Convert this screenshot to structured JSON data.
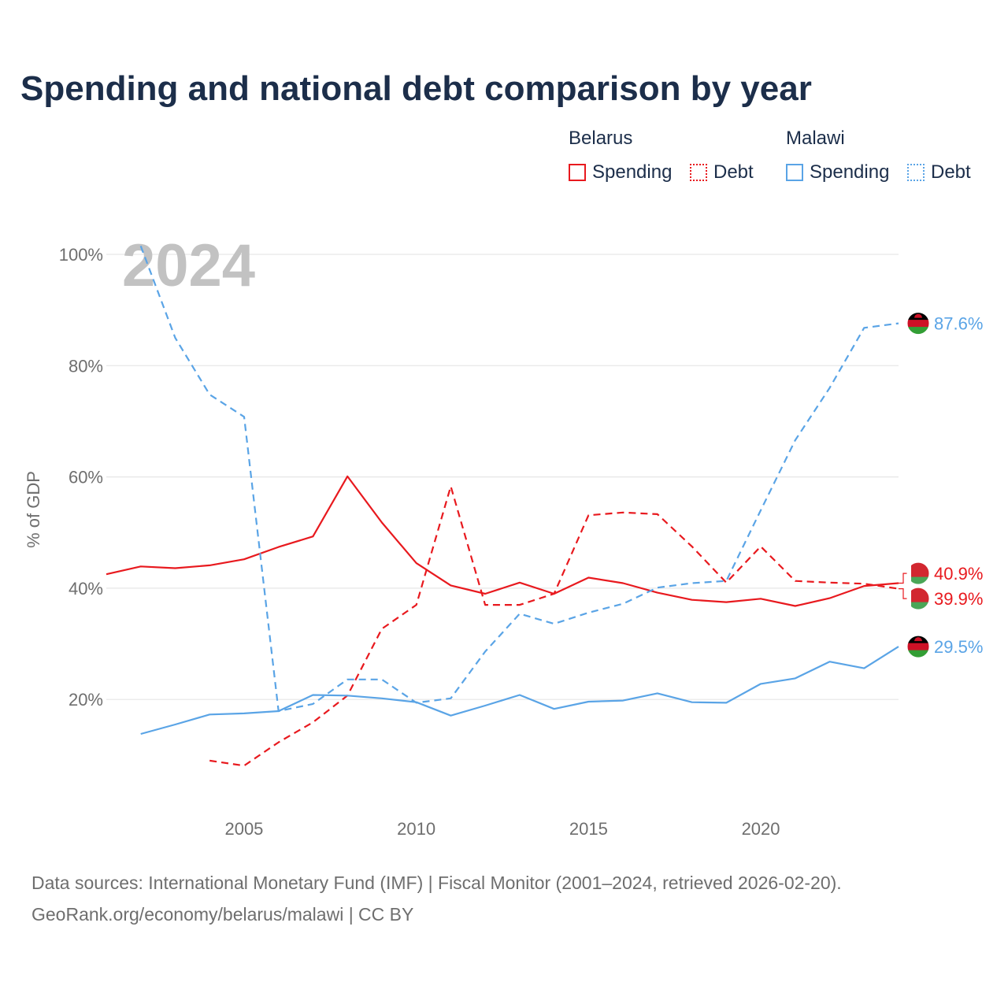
{
  "title": "Spending and national debt comparison by year",
  "legend": {
    "groups": [
      {
        "name": "Belarus",
        "color": "#e8191e",
        "items": [
          {
            "label": "Spending",
            "style": "solid"
          },
          {
            "label": "Debt",
            "style": "dotted"
          }
        ]
      },
      {
        "name": "Malawi",
        "color": "#5aa4e6",
        "items": [
          {
            "label": "Spending",
            "style": "solid"
          },
          {
            "label": "Debt",
            "style": "dotted"
          }
        ]
      }
    ]
  },
  "footer": {
    "line1": "Data sources: International Monetary Fund (IMF) | Fiscal Monitor (2001–2024, retrieved 2026-02-20).",
    "line2": "GeoRank.org/economy/belarus/malawi | CC BY"
  },
  "chart_data": {
    "type": "line",
    "title": "Spending and national debt comparison by year",
    "xlabel": "",
    "ylabel": "% of GDP",
    "year_watermark": "2024",
    "xlim": [
      2001,
      2024
    ],
    "ylim": [
      0,
      100
    ],
    "x_ticks": [
      "2005",
      "2010",
      "2015",
      "2020"
    ],
    "y_ticks": [
      "20%",
      "40%",
      "60%",
      "80%",
      "100%"
    ],
    "grid": true,
    "series": [
      {
        "name": "Belarus Spending",
        "country": "Belarus",
        "metric": "Spending",
        "color": "#e8191e",
        "dash": "solid",
        "end_label": "40.9%",
        "points": [
          [
            2001,
            42.5
          ],
          [
            2002,
            43.9
          ],
          [
            2003,
            43.6
          ],
          [
            2004,
            44.1
          ],
          [
            2005,
            45.2
          ],
          [
            2006,
            47.4
          ],
          [
            2007,
            49.3
          ],
          [
            2008,
            60.1
          ],
          [
            2009,
            51.8
          ],
          [
            2010,
            44.5
          ],
          [
            2011,
            40.5
          ],
          [
            2012,
            39.0
          ],
          [
            2013,
            41.0
          ],
          [
            2014,
            39.0
          ],
          [
            2015,
            41.9
          ],
          [
            2016,
            40.9
          ],
          [
            2017,
            39.2
          ],
          [
            2018,
            37.9
          ],
          [
            2019,
            37.5
          ],
          [
            2020,
            38.1
          ],
          [
            2021,
            36.8
          ],
          [
            2022,
            38.2
          ],
          [
            2023,
            40.4
          ],
          [
            2024,
            40.9
          ]
        ]
      },
      {
        "name": "Belarus Debt",
        "country": "Belarus",
        "metric": "Debt",
        "color": "#e8191e",
        "dash": "dashed",
        "end_label": "39.9%",
        "points": [
          [
            2004,
            9.0
          ],
          [
            2005,
            8.1
          ],
          [
            2006,
            12.3
          ],
          [
            2007,
            15.9
          ],
          [
            2008,
            20.7
          ],
          [
            2009,
            32.7
          ],
          [
            2010,
            37.0
          ],
          [
            2011,
            58.3
          ],
          [
            2012,
            37.0
          ],
          [
            2013,
            37.0
          ],
          [
            2014,
            39.0
          ],
          [
            2015,
            53.1
          ],
          [
            2016,
            53.6
          ],
          [
            2017,
            53.3
          ],
          [
            2018,
            47.5
          ],
          [
            2019,
            41.0
          ],
          [
            2020,
            47.5
          ],
          [
            2021,
            41.3
          ],
          [
            2022,
            41.0
          ],
          [
            2023,
            40.8
          ],
          [
            2024,
            39.9
          ]
        ]
      },
      {
        "name": "Malawi Spending",
        "country": "Malawi",
        "metric": "Spending",
        "color": "#5aa4e6",
        "dash": "solid",
        "end_label": "29.5%",
        "points": [
          [
            2002,
            13.8
          ],
          [
            2003,
            15.5
          ],
          [
            2004,
            17.3
          ],
          [
            2005,
            17.5
          ],
          [
            2006,
            17.9
          ],
          [
            2007,
            20.8
          ],
          [
            2008,
            20.7
          ],
          [
            2009,
            20.2
          ],
          [
            2010,
            19.5
          ],
          [
            2011,
            17.1
          ],
          [
            2012,
            18.9
          ],
          [
            2013,
            20.8
          ],
          [
            2014,
            18.3
          ],
          [
            2015,
            19.6
          ],
          [
            2016,
            19.8
          ],
          [
            2017,
            21.1
          ],
          [
            2018,
            19.5
          ],
          [
            2019,
            19.4
          ],
          [
            2020,
            22.8
          ],
          [
            2021,
            23.8
          ],
          [
            2022,
            26.8
          ],
          [
            2023,
            25.6
          ],
          [
            2024,
            29.5
          ]
        ]
      },
      {
        "name": "Malawi Debt",
        "country": "Malawi",
        "metric": "Debt",
        "color": "#5aa4e6",
        "dash": "dashed",
        "end_label": "87.6%",
        "points": [
          [
            2002,
            101.5
          ],
          [
            2003,
            85.0
          ],
          [
            2004,
            74.8
          ],
          [
            2005,
            70.8
          ],
          [
            2006,
            17.9
          ],
          [
            2007,
            19.2
          ],
          [
            2008,
            23.6
          ],
          [
            2009,
            23.6
          ],
          [
            2010,
            19.4
          ],
          [
            2011,
            20.2
          ],
          [
            2012,
            28.6
          ],
          [
            2013,
            35.4
          ],
          [
            2014,
            33.6
          ],
          [
            2015,
            35.6
          ],
          [
            2016,
            37.2
          ],
          [
            2017,
            40.1
          ],
          [
            2018,
            40.9
          ],
          [
            2019,
            41.3
          ],
          [
            2020,
            54.0
          ],
          [
            2021,
            66.6
          ],
          [
            2022,
            76.0
          ],
          [
            2023,
            86.8
          ],
          [
            2024,
            87.6
          ]
        ]
      }
    ]
  }
}
